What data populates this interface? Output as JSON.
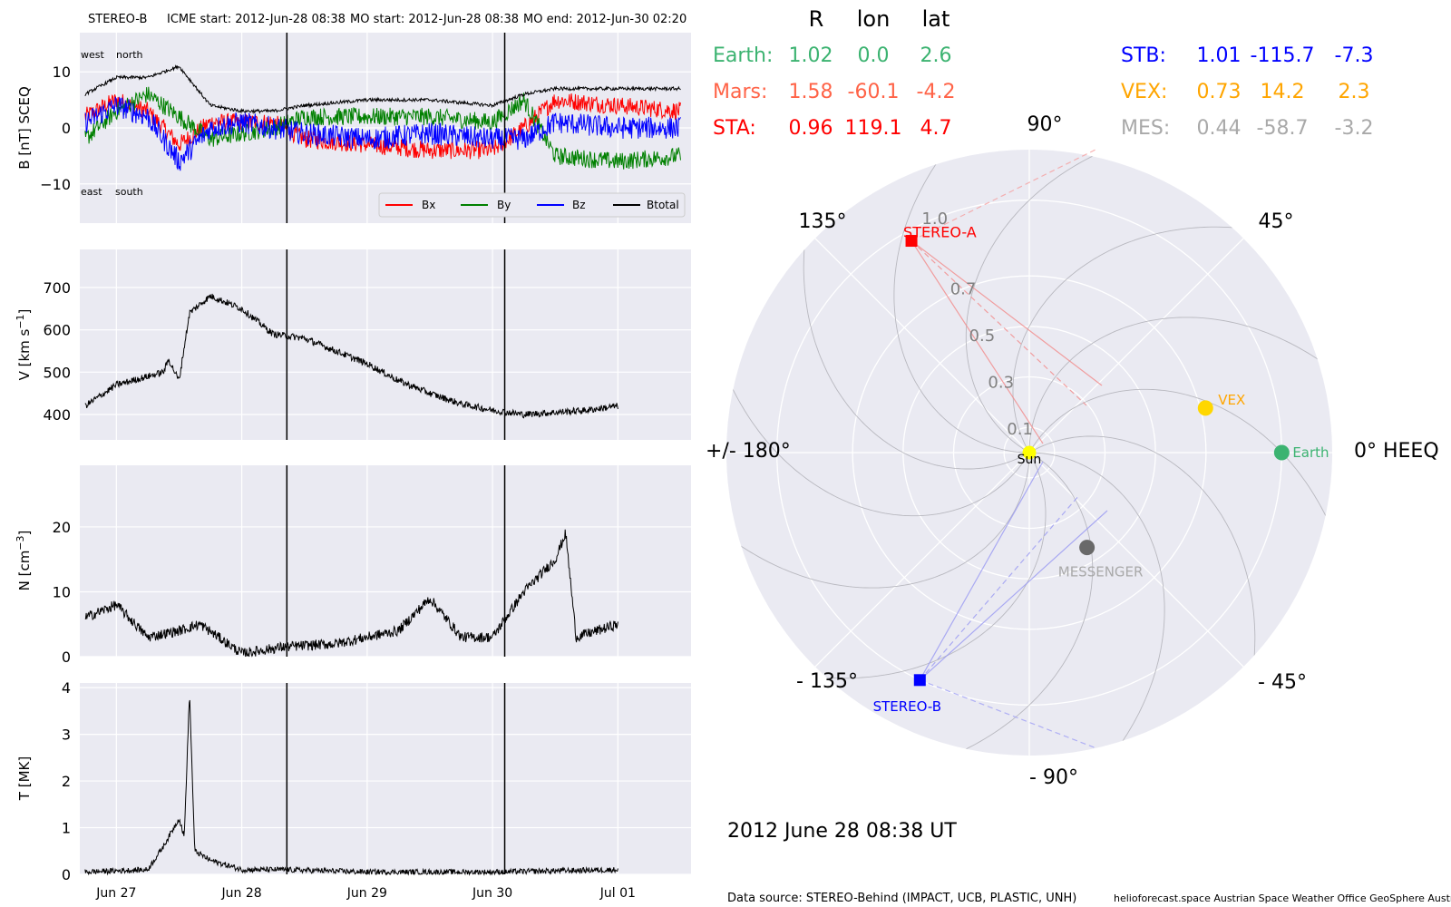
{
  "header": {
    "spacecraft": "STEREO-B",
    "icme_start": "ICME start: 2012-Jun-28 08:38",
    "mo_start": "MO start: 2012-Jun-28 08:38",
    "mo_end": "MO end: 2012-Jun-30 02:20"
  },
  "panels": {
    "b": {
      "ylabel": "B [nT] SCEQ",
      "ticks": [
        -10,
        0,
        10
      ],
      "ylim": [
        -17,
        17
      ],
      "annot": {
        "west": "west",
        "north": "north",
        "east": "east",
        "south": "south"
      },
      "legend": [
        "Bx",
        "By",
        "Bz",
        "Btotal"
      ]
    },
    "v": {
      "ylabel_main": "V [km s",
      "ylabel_exp": "−1",
      "ylabel_close": "]",
      "ticks": [
        400,
        500,
        600,
        700
      ],
      "ylim": [
        340,
        790
      ]
    },
    "n": {
      "ylabel_main": "N [cm",
      "ylabel_exp": "−3",
      "ylabel_close": "]",
      "ticks": [
        0,
        10,
        20
      ],
      "ylim": [
        0,
        29.5
      ]
    },
    "t": {
      "ylabel": "T [MK]",
      "ticks": [
        0,
        1,
        2,
        3,
        4
      ],
      "ylim": [
        0,
        4.1
      ]
    }
  },
  "x_ticks": [
    "Jun 27",
    "Jun 28",
    "Jun 29",
    "Jun 30",
    "Jul 01"
  ],
  "colors": {
    "bx": "#ff0000",
    "by": "#008000",
    "bz": "#0000ff",
    "btot": "#000000",
    "panel_bg": "#eaeaf2"
  },
  "chart_data": {
    "type": "line",
    "x_range": [
      "2012-06-26 17:00",
      "2012-07-01 14:00"
    ],
    "event_lines": [
      "2012-06-28 08:38",
      "2012-06-30 02:20"
    ],
    "series": [
      {
        "name": "Bx",
        "unit": "nT",
        "points": [
          [
            "2012-06-26 18:00",
            2
          ],
          [
            "2012-06-27 00:00",
            5
          ],
          [
            "2012-06-27 06:00",
            3
          ],
          [
            "2012-06-27 12:00",
            -3
          ],
          [
            "2012-06-27 18:00",
            1
          ],
          [
            "2012-06-28 00:00",
            1
          ],
          [
            "2012-06-28 06:00",
            1
          ],
          [
            "2012-06-28 12:00",
            -2
          ],
          [
            "2012-06-29 00:00",
            -3
          ],
          [
            "2012-06-29 12:00",
            -4
          ],
          [
            "2012-06-30 00:00",
            -4
          ],
          [
            "2012-06-30 06:00",
            0
          ],
          [
            "2012-06-30 12:00",
            5
          ],
          [
            "2012-07-01 00:00",
            4
          ],
          [
            "2012-07-01 12:00",
            3
          ]
        ]
      },
      {
        "name": "By",
        "unit": "nT",
        "points": [
          [
            "2012-06-26 18:00",
            -2
          ],
          [
            "2012-06-27 00:00",
            3
          ],
          [
            "2012-06-27 06:00",
            6
          ],
          [
            "2012-06-27 12:00",
            2
          ],
          [
            "2012-06-27 18:00",
            -2
          ],
          [
            "2012-06-28 00:00",
            -1
          ],
          [
            "2012-06-28 06:00",
            0
          ],
          [
            "2012-06-28 12:00",
            2
          ],
          [
            "2012-06-29 00:00",
            2
          ],
          [
            "2012-06-29 12:00",
            2
          ],
          [
            "2012-06-30 00:00",
            1
          ],
          [
            "2012-06-30 06:00",
            5
          ],
          [
            "2012-06-30 12:00",
            -5
          ],
          [
            "2012-07-01 00:00",
            -6
          ],
          [
            "2012-07-01 12:00",
            -5
          ]
        ]
      },
      {
        "name": "Bz",
        "unit": "nT",
        "points": [
          [
            "2012-06-26 18:00",
            1
          ],
          [
            "2012-06-27 00:00",
            4
          ],
          [
            "2012-06-27 06:00",
            2
          ],
          [
            "2012-06-27 12:00",
            -6
          ],
          [
            "2012-06-27 18:00",
            0
          ],
          [
            "2012-06-28 00:00",
            1
          ],
          [
            "2012-06-28 06:00",
            0
          ],
          [
            "2012-06-28 12:00",
            -1
          ],
          [
            "2012-06-29 00:00",
            -2
          ],
          [
            "2012-06-29 12:00",
            -1
          ],
          [
            "2012-06-30 00:00",
            -2
          ],
          [
            "2012-06-30 06:00",
            -2
          ],
          [
            "2012-06-30 12:00",
            1
          ],
          [
            "2012-07-01 00:00",
            0
          ],
          [
            "2012-07-01 12:00",
            0
          ]
        ]
      },
      {
        "name": "Btotal",
        "unit": "nT",
        "points": [
          [
            "2012-06-26 18:00",
            6
          ],
          [
            "2012-06-27 00:00",
            9
          ],
          [
            "2012-06-27 06:00",
            9
          ],
          [
            "2012-06-27 12:00",
            11
          ],
          [
            "2012-06-27 18:00",
            4
          ],
          [
            "2012-06-28 00:00",
            3
          ],
          [
            "2012-06-28 06:00",
            3
          ],
          [
            "2012-06-28 12:00",
            4
          ],
          [
            "2012-06-29 00:00",
            5
          ],
          [
            "2012-06-29 12:00",
            5
          ],
          [
            "2012-06-30 00:00",
            4
          ],
          [
            "2012-06-30 06:00",
            6
          ],
          [
            "2012-06-30 12:00",
            7
          ],
          [
            "2012-07-01 00:00",
            7
          ],
          [
            "2012-07-01 12:00",
            7
          ]
        ]
      },
      {
        "name": "V",
        "unit": "km/s",
        "points": [
          [
            "2012-06-26 18:00",
            420
          ],
          [
            "2012-06-27 00:00",
            470
          ],
          [
            "2012-06-27 06:00",
            490
          ],
          [
            "2012-06-27 09:00",
            500
          ],
          [
            "2012-06-27 10:00",
            530
          ],
          [
            "2012-06-27 12:00",
            480
          ],
          [
            "2012-06-27 14:00",
            640
          ],
          [
            "2012-06-27 18:00",
            680
          ],
          [
            "2012-06-28 00:00",
            650
          ],
          [
            "2012-06-28 06:00",
            590
          ],
          [
            "2012-06-28 12:00",
            580
          ],
          [
            "2012-06-28 18:00",
            550
          ],
          [
            "2012-06-29 00:00",
            520
          ],
          [
            "2012-06-29 06:00",
            480
          ],
          [
            "2012-06-29 12:00",
            450
          ],
          [
            "2012-06-29 18:00",
            425
          ],
          [
            "2012-06-30 00:00",
            410
          ],
          [
            "2012-06-30 06:00",
            400
          ],
          [
            "2012-06-30 12:00",
            405
          ],
          [
            "2012-06-30 18:00",
            410
          ],
          [
            "2012-07-01 00:00",
            420
          ],
          [
            "2012-07-01 00:00",
            440
          ]
        ]
      },
      {
        "name": "N",
        "unit": "cm^-3",
        "points": [
          [
            "2012-06-26 18:00",
            6
          ],
          [
            "2012-06-27 00:00",
            8
          ],
          [
            "2012-06-27 06:00",
            3
          ],
          [
            "2012-06-27 12:00",
            4
          ],
          [
            "2012-06-27 16:00",
            5
          ],
          [
            "2012-06-28 00:00",
            0.5
          ],
          [
            "2012-06-28 08:00",
            1.5
          ],
          [
            "2012-06-28 18:00",
            2
          ],
          [
            "2012-06-29 06:00",
            4
          ],
          [
            "2012-06-29 12:00",
            9
          ],
          [
            "2012-06-29 18:00",
            3
          ],
          [
            "2012-06-30 00:00",
            3
          ],
          [
            "2012-06-30 06:00",
            10
          ],
          [
            "2012-06-30 12:00",
            15
          ],
          [
            "2012-06-30 14:00",
            19
          ],
          [
            "2012-06-30 16:00",
            3
          ],
          [
            "2012-07-01 00:00",
            5
          ],
          [
            "2012-07-01 00:00",
            4
          ]
        ]
      },
      {
        "name": "T",
        "unit": "MK",
        "points": [
          [
            "2012-06-26 18:00",
            0.05
          ],
          [
            "2012-06-27 06:00",
            0.1
          ],
          [
            "2012-06-27 09:00",
            0.6
          ],
          [
            "2012-06-27 12:00",
            1.2
          ],
          [
            "2012-06-27 13:00",
            0.8
          ],
          [
            "2012-06-27 14:00",
            3.9
          ],
          [
            "2012-06-27 15:00",
            0.5
          ],
          [
            "2012-06-27 18:00",
            0.3
          ],
          [
            "2012-06-28 00:00",
            0.1
          ],
          [
            "2012-06-28 08:00",
            0.1
          ],
          [
            "2012-06-29 00:00",
            0.05
          ],
          [
            "2012-06-30 00:00",
            0.05
          ],
          [
            "2012-07-01 00:00",
            0.1
          ]
        ]
      }
    ]
  },
  "positions": {
    "col_headers": [
      "R",
      "lon",
      "lat"
    ],
    "left": [
      {
        "name": "Earth:",
        "r": "1.02",
        "lon": "0.0",
        "lat": "2.6",
        "color": "#3cb371"
      },
      {
        "name": "Mars:",
        "r": "1.58",
        "lon": "-60.1",
        "lat": "-4.2",
        "color": "#ff6347"
      },
      {
        "name": "STA:",
        "r": "0.96",
        "lon": "119.1",
        "lat": "4.7",
        "color": "#ff0000"
      }
    ],
    "right": [
      {
        "name": "STB:",
        "r": "1.01",
        "lon": "-115.7",
        "lat": "-7.3",
        "color": "#0000ff"
      },
      {
        "name": "VEX:",
        "r": "0.73",
        "lon": "14.2",
        "lat": "2.3",
        "color": "#ffa500"
      },
      {
        "name": "MES:",
        "r": "0.44",
        "lon": "-58.7",
        "lat": "-3.2",
        "color": "#a9a9a9"
      }
    ]
  },
  "polar": {
    "angle_labels": {
      "a90": "90°",
      "a45": "45°",
      "a0": "0° HEEQ",
      "am45": "- 45°",
      "am90": "- 90°",
      "am135": "- 135°",
      "a180": "+/- 180°",
      "a135": "135°"
    },
    "r_labels": [
      "0.1",
      "0.3",
      "0.5",
      "0.7",
      "1.0"
    ],
    "r_ticks": [
      0.1,
      0.3,
      0.5,
      0.7,
      1.0
    ],
    "r_max": 1.2,
    "bodies": [
      {
        "key": "sun",
        "label": "Sun",
        "r": 0,
        "lon": 0,
        "color": "#ffff00",
        "shape": "circle"
      },
      {
        "key": "earth",
        "label": "Earth",
        "r": 1.0,
        "lon": 0.0,
        "color": "#3cb371",
        "shape": "circle"
      },
      {
        "key": "vex",
        "label": "VEX",
        "r": 0.72,
        "lon": 14.2,
        "color": "#ffd700",
        "shape": "circle"
      },
      {
        "key": "mes",
        "label": "MESSENGER",
        "r": 0.44,
        "lon": -58.7,
        "color": "#696969",
        "shape": "circle"
      },
      {
        "key": "sta",
        "label": "STEREO-A",
        "r": 0.96,
        "lon": 119.1,
        "color": "#ff0000",
        "shape": "square"
      },
      {
        "key": "stb",
        "label": "STEREO-B",
        "r": 1.0,
        "lon": -115.7,
        "color": "#0000ff",
        "shape": "square"
      }
    ]
  },
  "footer": {
    "date": "2012 June 28  08:38 UT",
    "source": "Data source: STEREO-Behind (IMPACT, UCB, PLASTIC, UNH)",
    "credits": "helioforecast.space   Austrian Space Weather Office   GeoSphere Austria"
  }
}
